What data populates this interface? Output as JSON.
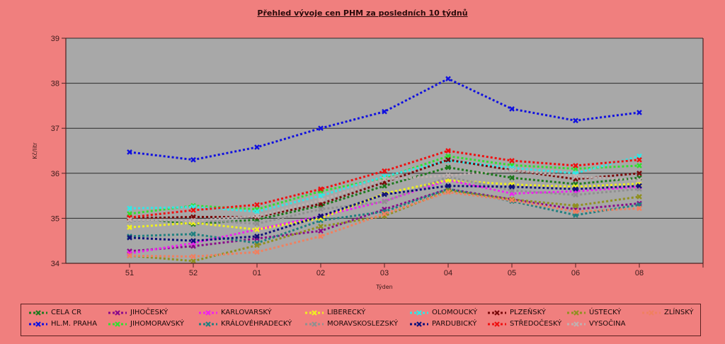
{
  "chart_data": {
    "type": "line",
    "title": "Přehled vývoje cen PHM za posledních 10 týdnů",
    "xlabel": "Týden",
    "ylabel": "Kč/litr",
    "ylim": [
      34,
      39
    ],
    "yticks": [
      "34",
      "35",
      "36",
      "37",
      "38",
      "39"
    ],
    "grid": true,
    "legend_position": "bottom",
    "categories": [
      "51",
      "52",
      "01",
      "02",
      "03",
      "04",
      "05",
      "06",
      "08"
    ],
    "series": [
      {
        "name": "CELA CR",
        "color": "#1e7a1e",
        "values": [
          35.02,
          34.87,
          34.97,
          35.28,
          35.72,
          36.13,
          35.9,
          35.76,
          35.9
        ]
      },
      {
        "name": "HL.M. PRAHA",
        "color": "#1010e0",
        "values": [
          36.47,
          36.3,
          36.58,
          37.0,
          37.37,
          38.1,
          37.43,
          37.17,
          37.35
        ]
      },
      {
        "name": "JIHOČESKÝ",
        "color": "#8a0a8a",
        "values": [
          34.27,
          34.38,
          34.55,
          34.72,
          35.2,
          35.65,
          35.42,
          35.2,
          35.33
        ]
      },
      {
        "name": "JIHOMORAVSKÝ",
        "color": "#30e030",
        "values": [
          35.1,
          35.28,
          35.2,
          35.6,
          35.9,
          36.38,
          36.18,
          36.1,
          36.17
        ]
      },
      {
        "name": "KARLOVARSKÝ",
        "color": "#f020f0",
        "values": [
          34.22,
          34.45,
          34.75,
          35.05,
          35.38,
          35.85,
          35.55,
          35.6,
          35.7
        ]
      },
      {
        "name": "KRÁLOVÉHRADECKÝ",
        "color": "#208080",
        "values": [
          34.6,
          34.65,
          34.45,
          34.95,
          35.15,
          35.65,
          35.38,
          35.07,
          35.3
        ]
      },
      {
        "name": "LIBERECKÝ",
        "color": "#f0f020",
        "values": [
          34.8,
          34.9,
          34.75,
          35.0,
          35.55,
          35.85,
          35.75,
          35.7,
          35.77
        ]
      },
      {
        "name": "MORAVSKOSLEZSKÝ",
        "color": "#909090",
        "values": [
          34.95,
          34.97,
          34.88,
          35.2,
          35.37,
          35.92,
          35.62,
          35.52,
          35.65
        ]
      },
      {
        "name": "OLOMOUCKÝ",
        "color": "#30e8e8",
        "values": [
          35.22,
          35.25,
          35.15,
          35.5,
          35.93,
          36.28,
          36.12,
          36.0,
          36.38
        ]
      },
      {
        "name": "PARDUBICKÝ",
        "color": "#10107a",
        "values": [
          34.57,
          34.5,
          34.6,
          35.05,
          35.53,
          35.72,
          35.7,
          35.65,
          35.72
        ]
      },
      {
        "name": "PLZEŇSKÝ",
        "color": "#7a0a0a",
        "values": [
          35.0,
          35.03,
          35.03,
          35.32,
          35.8,
          36.3,
          36.07,
          35.87,
          36.0
        ]
      },
      {
        "name": "STŘEDOČESKÝ",
        "color": "#f01010",
        "values": [
          35.02,
          35.18,
          35.3,
          35.65,
          36.05,
          36.5,
          36.28,
          36.17,
          36.3
        ]
      },
      {
        "name": "ÚSTECKÝ",
        "color": "#909020",
        "values": [
          34.17,
          34.05,
          34.4,
          34.82,
          35.05,
          35.62,
          35.42,
          35.28,
          35.48
        ]
      },
      {
        "name": "VYSOČINA",
        "color": "#c0b0b0",
        "values": [
          34.97,
          34.95,
          35.05,
          35.4,
          35.87,
          35.95,
          36.07,
          35.93,
          35.85
        ]
      },
      {
        "name": "ZLÍNSKÝ",
        "color": "#f08060",
        "values": [
          34.17,
          34.15,
          34.25,
          34.6,
          35.1,
          35.58,
          35.4,
          35.15,
          35.22
        ]
      }
    ]
  }
}
